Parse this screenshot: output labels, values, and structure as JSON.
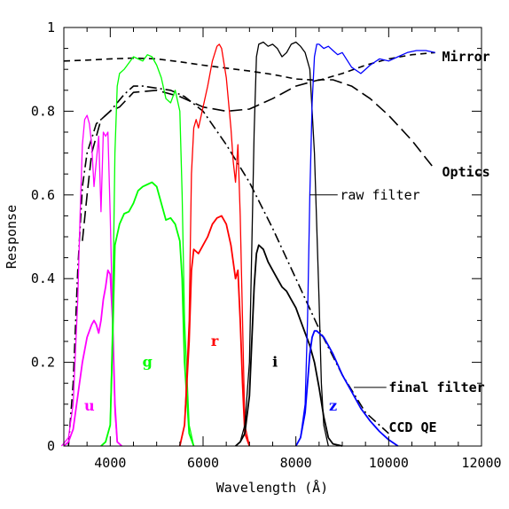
{
  "chart_data": {
    "type": "line",
    "title": "",
    "xlabel": "Wavelength (Å)",
    "ylabel": "Response",
    "xlim": [
      3000,
      12000
    ],
    "ylim": [
      0,
      1
    ],
    "xticks": [
      4000,
      6000,
      8000,
      10000,
      12000
    ],
    "xtick_labels": [
      "4000",
      "6000",
      "8000",
      "10000",
      "12000"
    ],
    "yticks": [
      0,
      0.2,
      0.4,
      0.6,
      0.8,
      1
    ],
    "ytick_labels": [
      "0",
      "0.2",
      "0.4",
      "0.6",
      "0.8",
      "1"
    ],
    "grid": false,
    "legend": "none",
    "annotations": [
      {
        "text": "Mirror",
        "x": 11150,
        "y": 0.93
      },
      {
        "text": "Optics",
        "x": 11150,
        "y": 0.655
      },
      {
        "text": "raw filter",
        "x": 8950,
        "y": 0.6
      },
      {
        "text": "final filter",
        "x": 10000,
        "y": 0.14
      },
      {
        "text": "CCD QE",
        "x": 10000,
        "y": 0.045
      }
    ],
    "leaders": [
      {
        "from": [
          8300,
          0.6
        ],
        "to": [
          8900,
          0.6
        ]
      },
      {
        "from": [
          9250,
          0.14
        ],
        "to": [
          9950,
          0.14
        ]
      }
    ],
    "band_labels": [
      {
        "text": "u",
        "x": 3550,
        "y": 0.095,
        "color": "#ff00ff"
      },
      {
        "text": "g",
        "x": 4800,
        "y": 0.2,
        "color": "#00ff00"
      },
      {
        "text": "r",
        "x": 6250,
        "y": 0.25,
        "color": "#ff0000"
      },
      {
        "text": "i",
        "x": 7550,
        "y": 0.2,
        "color": "#000000"
      },
      {
        "text": "z",
        "x": 8800,
        "y": 0.095,
        "color": "#0000ff"
      }
    ],
    "series": [
      {
        "name": "Mirror",
        "style": "short-dash",
        "color": "#000000",
        "x": [
          3000,
          3500,
          4000,
          4500,
          5000,
          5500,
          6000,
          6500,
          7000,
          7500,
          8000,
          8500,
          9000,
          9500,
          10000,
          10500,
          11000
        ],
        "y": [
          0.92,
          0.922,
          0.925,
          0.927,
          0.925,
          0.918,
          0.91,
          0.903,
          0.896,
          0.888,
          0.877,
          0.874,
          0.89,
          0.91,
          0.925,
          0.935,
          0.94
        ]
      },
      {
        "name": "Optics",
        "style": "long-dash",
        "color": "#000000",
        "x": [
          3400,
          3500,
          3600,
          3800,
          4000,
          4200,
          4500,
          5000,
          5500,
          6000,
          6500,
          7000,
          7500,
          8000,
          8500,
          8800,
          9200,
          9600,
          10000,
          10500,
          11000
        ],
        "y": [
          0.49,
          0.6,
          0.7,
          0.78,
          0.8,
          0.81,
          0.845,
          0.85,
          0.835,
          0.81,
          0.8,
          0.805,
          0.83,
          0.86,
          0.875,
          0.875,
          0.86,
          0.83,
          0.79,
          0.73,
          0.66
        ]
      },
      {
        "name": "CCD QE",
        "style": "dash-dot",
        "color": "#000000",
        "x": [
          3100,
          3200,
          3300,
          3400,
          3500,
          3700,
          4000,
          4300,
          4500,
          4700,
          5000,
          5300,
          5600,
          6000,
          6500,
          7000,
          7500,
          8000,
          8500,
          9000,
          9500,
          10000
        ],
        "y": [
          0.0,
          0.15,
          0.42,
          0.62,
          0.7,
          0.77,
          0.8,
          0.84,
          0.86,
          0.86,
          0.855,
          0.85,
          0.835,
          0.8,
          0.72,
          0.63,
          0.52,
          0.4,
          0.28,
          0.17,
          0.08,
          0.03
        ]
      },
      {
        "name": "u",
        "role": "raw",
        "color": "#ff00ff",
        "x": [
          2950,
          3100,
          3200,
          3300,
          3350,
          3400,
          3450,
          3500,
          3550,
          3600,
          3650,
          3700,
          3750,
          3800,
          3850,
          3900,
          3950,
          4000,
          4050,
          4100,
          4150,
          4250
        ],
        "y": [
          0.0,
          0.02,
          0.1,
          0.35,
          0.55,
          0.72,
          0.78,
          0.79,
          0.77,
          0.72,
          0.62,
          0.68,
          0.74,
          0.56,
          0.75,
          0.74,
          0.75,
          0.55,
          0.3,
          0.08,
          0.01,
          0.0
        ]
      },
      {
        "name": "u",
        "role": "final",
        "color": "#ff00ff",
        "x": [
          3000,
          3100,
          3200,
          3300,
          3400,
          3500,
          3600,
          3650,
          3700,
          3750,
          3800,
          3850,
          3900,
          3950,
          4000,
          4050,
          4100,
          4150,
          4250
        ],
        "y": [
          0.0,
          0.01,
          0.04,
          0.12,
          0.2,
          0.26,
          0.29,
          0.3,
          0.29,
          0.27,
          0.3,
          0.35,
          0.38,
          0.42,
          0.41,
          0.3,
          0.1,
          0.01,
          0.0
        ]
      },
      {
        "name": "g",
        "role": "raw",
        "color": "#00ff00",
        "x": [
          3800,
          3900,
          4000,
          4050,
          4100,
          4150,
          4200,
          4300,
          4500,
          4600,
          4700,
          4800,
          4900,
          5000,
          5100,
          5200,
          5300,
          5400,
          5500,
          5550,
          5600,
          5700,
          5800
        ],
        "y": [
          0.0,
          0.01,
          0.05,
          0.3,
          0.7,
          0.86,
          0.89,
          0.9,
          0.93,
          0.925,
          0.92,
          0.935,
          0.93,
          0.91,
          0.88,
          0.83,
          0.82,
          0.85,
          0.8,
          0.6,
          0.3,
          0.05,
          0.0
        ]
      },
      {
        "name": "g",
        "role": "final",
        "color": "#00ff00",
        "x": [
          3800,
          3900,
          4000,
          4050,
          4100,
          4200,
          4300,
          4400,
          4500,
          4600,
          4700,
          4800,
          4900,
          5000,
          5100,
          5200,
          5300,
          5400,
          5500,
          5550,
          5600,
          5700,
          5800
        ],
        "y": [
          0.0,
          0.01,
          0.05,
          0.25,
          0.48,
          0.53,
          0.555,
          0.56,
          0.58,
          0.61,
          0.62,
          0.625,
          0.63,
          0.62,
          0.58,
          0.54,
          0.545,
          0.53,
          0.49,
          0.4,
          0.2,
          0.03,
          0.0
        ]
      },
      {
        "name": "r",
        "role": "raw",
        "color": "#ff0000",
        "x": [
          5500,
          5600,
          5700,
          5750,
          5800,
          5850,
          5900,
          6000,
          6100,
          6200,
          6300,
          6350,
          6400,
          6500,
          6600,
          6650,
          6700,
          6750,
          6800,
          6850,
          6900,
          7000
        ],
        "y": [
          0.0,
          0.05,
          0.3,
          0.65,
          0.76,
          0.78,
          0.76,
          0.81,
          0.86,
          0.92,
          0.955,
          0.96,
          0.95,
          0.88,
          0.76,
          0.68,
          0.63,
          0.72,
          0.55,
          0.3,
          0.05,
          0.0
        ]
      },
      {
        "name": "r",
        "role": "final",
        "color": "#ff0000",
        "x": [
          5500,
          5600,
          5700,
          5750,
          5800,
          5900,
          6000,
          6100,
          6200,
          6300,
          6400,
          6500,
          6600,
          6700,
          6750,
          6800,
          6850,
          6900,
          7000
        ],
        "y": [
          0.0,
          0.05,
          0.25,
          0.42,
          0.47,
          0.46,
          0.48,
          0.5,
          0.53,
          0.545,
          0.55,
          0.53,
          0.48,
          0.4,
          0.42,
          0.3,
          0.15,
          0.03,
          0.0
        ]
      },
      {
        "name": "i",
        "role": "raw",
        "color": "#000000",
        "x": [
          6700,
          6800,
          6900,
          7000,
          7100,
          7150,
          7200,
          7300,
          7400,
          7500,
          7600,
          7700,
          7800,
          7900,
          8000,
          8100,
          8200,
          8300,
          8400,
          8500,
          8550,
          8600,
          8700
        ],
        "y": [
          0.0,
          0.01,
          0.05,
          0.2,
          0.75,
          0.93,
          0.96,
          0.965,
          0.955,
          0.96,
          0.95,
          0.93,
          0.94,
          0.96,
          0.965,
          0.955,
          0.94,
          0.9,
          0.7,
          0.35,
          0.15,
          0.05,
          0.0
        ]
      },
      {
        "name": "i",
        "role": "final",
        "color": "#000000",
        "x": [
          6700,
          6800,
          6900,
          7000,
          7100,
          7150,
          7200,
          7300,
          7400,
          7500,
          7600,
          7700,
          7800,
          7900,
          8000,
          8100,
          8200,
          8300,
          8400,
          8500,
          8600,
          8700,
          8800,
          9000
        ],
        "y": [
          0.0,
          0.01,
          0.03,
          0.12,
          0.38,
          0.46,
          0.48,
          0.47,
          0.44,
          0.42,
          0.4,
          0.38,
          0.37,
          0.35,
          0.33,
          0.3,
          0.27,
          0.24,
          0.2,
          0.14,
          0.07,
          0.02,
          0.005,
          0.0
        ]
      },
      {
        "name": "z",
        "role": "raw",
        "color": "#0000ff",
        "x": [
          8000,
          8100,
          8200,
          8250,
          8300,
          8350,
          8400,
          8450,
          8500,
          8600,
          8700,
          8800,
          8900,
          9000,
          9200,
          9400,
          9600,
          9800,
          10000,
          10200,
          10400,
          10600,
          10800,
          11000
        ],
        "y": [
          0.0,
          0.02,
          0.1,
          0.3,
          0.6,
          0.82,
          0.93,
          0.96,
          0.96,
          0.95,
          0.955,
          0.945,
          0.935,
          0.94,
          0.905,
          0.89,
          0.91,
          0.925,
          0.92,
          0.93,
          0.94,
          0.945,
          0.945,
          0.94
        ]
      },
      {
        "name": "z",
        "role": "final",
        "color": "#0000ff",
        "x": [
          8000,
          8100,
          8200,
          8250,
          8300,
          8350,
          8400,
          8450,
          8500,
          8600,
          8700,
          8800,
          9000,
          9200,
          9400,
          9600,
          9800,
          10000,
          10200
        ],
        "y": [
          0.0,
          0.02,
          0.08,
          0.15,
          0.22,
          0.26,
          0.275,
          0.275,
          0.27,
          0.26,
          0.24,
          0.22,
          0.17,
          0.13,
          0.09,
          0.06,
          0.035,
          0.015,
          0.0
        ]
      }
    ]
  }
}
